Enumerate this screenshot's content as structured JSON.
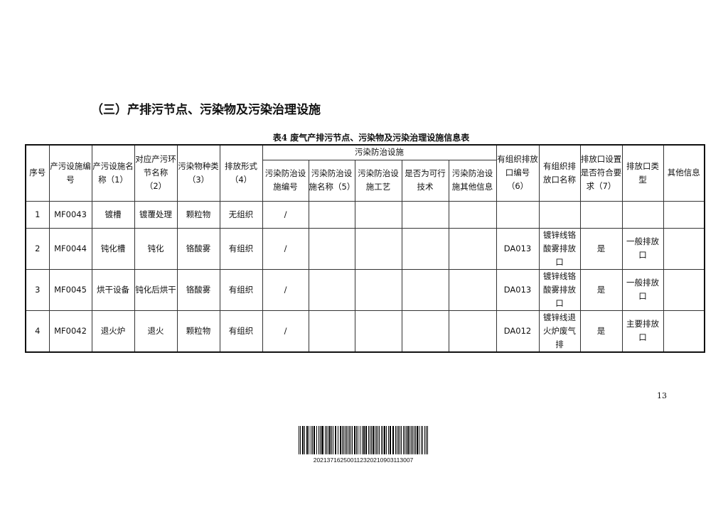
{
  "section_title": "（三）产排污节点、污染物及污染治理设施",
  "table_caption": "表4 废气产排污节点、污染物及污染治理设施信息表",
  "header": {
    "seq": "序号",
    "facility_code": "产污设施编号",
    "facility_name": "产污设施名称（1）",
    "process_name": "对应产污环节名称（2）",
    "pollutant": "污染物种类（3）",
    "discharge_form": "排放形式（4）",
    "treatment_group": "污染防治设施",
    "treatment_code": "污染防治设施编号",
    "treatment_name": "污染防治设施名称（5）",
    "treatment_process": "污染防治设施工艺",
    "feasible": "是否为可行技术",
    "treatment_other": "污染防治设施其他信息",
    "outlet_code": "有组织排放口编号（6）",
    "outlet_name": "有组织排放口名称",
    "outlet_compliant": "排放口设置是否符合要求（7）",
    "outlet_type": "排放口类型",
    "other": "其他信息"
  },
  "rows": [
    {
      "seq": "1",
      "facility_code": "MF0043",
      "facility_name": "镀槽",
      "process_name": "镀覆处理",
      "pollutant": "颗粒物",
      "discharge_form": "无组织",
      "treatment_code": "/",
      "treatment_name": "",
      "treatment_process": "",
      "feasible": "",
      "treatment_other": "",
      "outlet_code": "",
      "outlet_name": "",
      "outlet_compliant": "",
      "outlet_type": "",
      "other": ""
    },
    {
      "seq": "2",
      "facility_code": "MF0044",
      "facility_name": "钝化槽",
      "process_name": "钝化",
      "pollutant": "铬酸雾",
      "discharge_form": "有组织",
      "treatment_code": "/",
      "treatment_name": "",
      "treatment_process": "",
      "feasible": "",
      "treatment_other": "",
      "outlet_code": "DA013",
      "outlet_name": "镀锌线铬酸雾排放口",
      "outlet_compliant": "是",
      "outlet_type": "一般排放口",
      "other": ""
    },
    {
      "seq": "3",
      "facility_code": "MF0045",
      "facility_name": "烘干设备",
      "process_name": "钝化后烘干",
      "pollutant": "铬酸雾",
      "discharge_form": "有组织",
      "treatment_code": "/",
      "treatment_name": "",
      "treatment_process": "",
      "feasible": "",
      "treatment_other": "",
      "outlet_code": "DA013",
      "outlet_name": "镀锌线铬酸雾排放口",
      "outlet_compliant": "是",
      "outlet_type": "一般排放口",
      "other": ""
    },
    {
      "seq": "4",
      "facility_code": "MF0042",
      "facility_name": "退火炉",
      "process_name": "退火",
      "pollutant": "颗粒物",
      "discharge_form": "有组织",
      "treatment_code": "/",
      "treatment_name": "",
      "treatment_process": "",
      "feasible": "",
      "treatment_other": "",
      "outlet_code": "DA012",
      "outlet_name": "镀锌线退火炉废气排",
      "outlet_compliant": "是",
      "outlet_type": "主要排放口",
      "other": ""
    }
  ],
  "page_number": "13",
  "barcode_number": "202137162500112320210903113007"
}
